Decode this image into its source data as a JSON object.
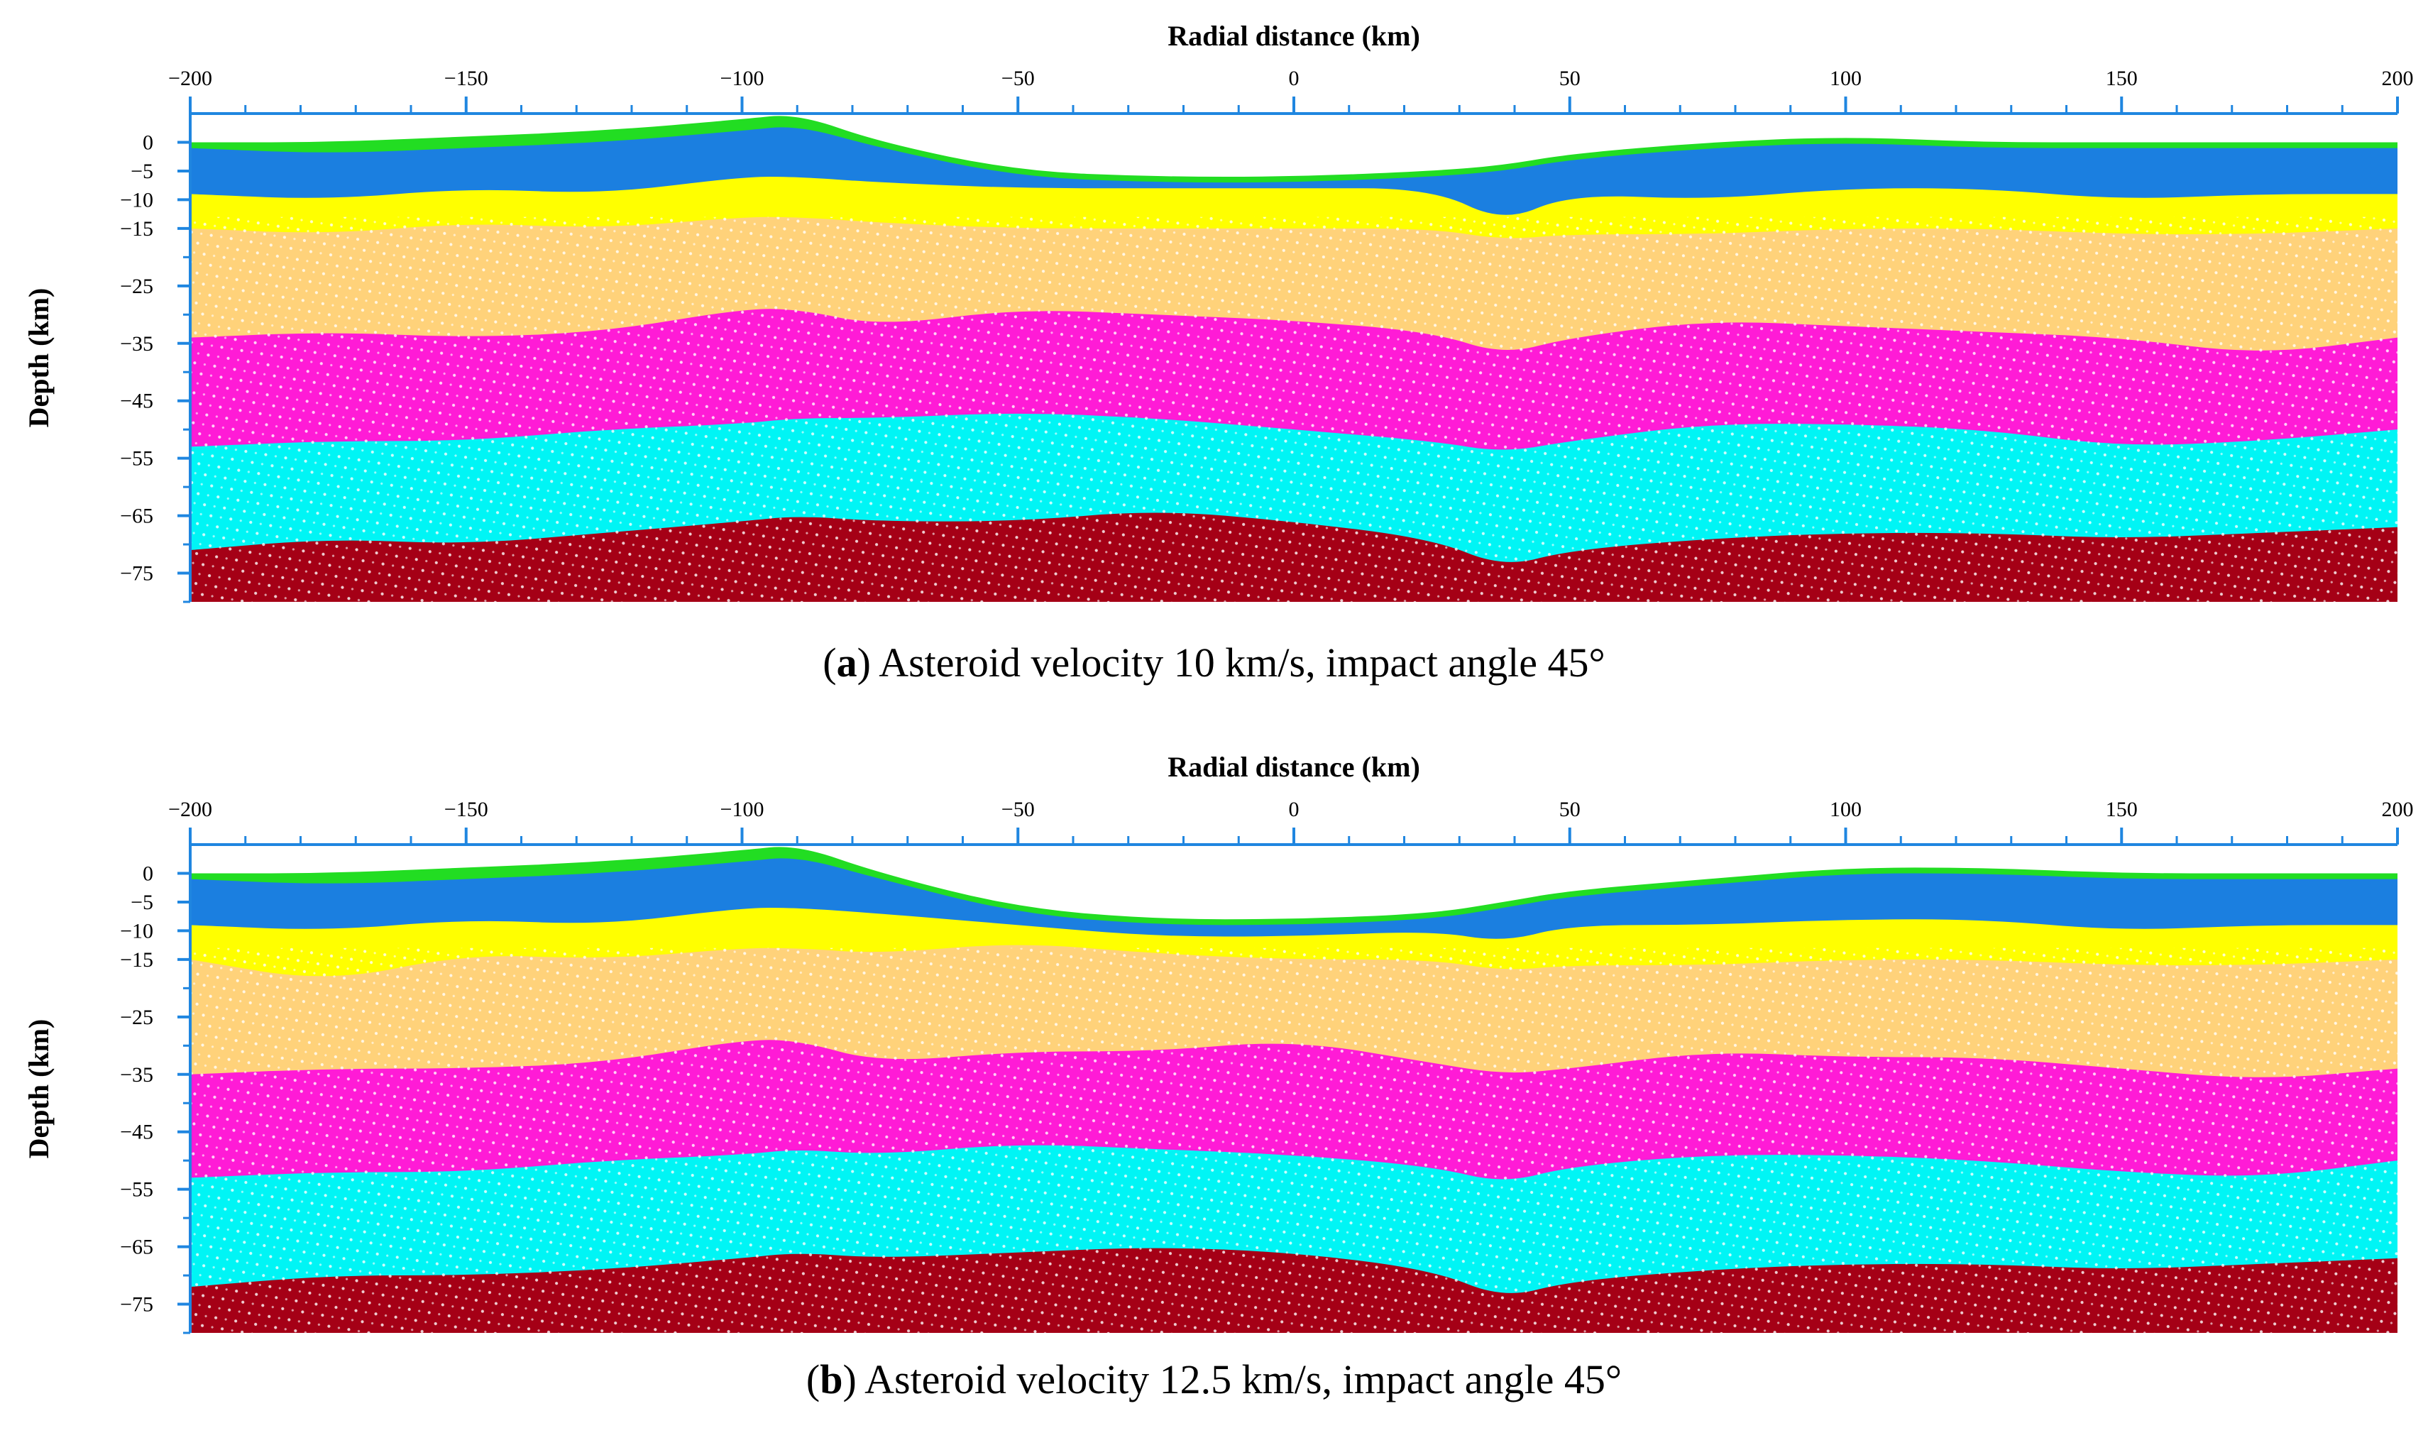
{
  "chart_data": [
    {
      "type": "area",
      "panel_letter": "a",
      "caption": "Asteroid velocity 10 km/s, impact angle 45°",
      "xlabel": "Radial distance (km)",
      "ylabel": "Depth (km)",
      "xlim": [
        -200,
        200
      ],
      "ylim": [
        -80,
        5
      ],
      "x_ticks": [
        -200,
        -150,
        -100,
        -50,
        0,
        50,
        100,
        150,
        200
      ],
      "y_ticks": [
        0,
        -5,
        -10,
        -15,
        -25,
        -35,
        -45,
        -55,
        -65,
        -75
      ],
      "x": [
        -200,
        -175,
        -150,
        -125,
        -100,
        -90,
        -75,
        -50,
        -25,
        0,
        25,
        38,
        50,
        75,
        100,
        125,
        150,
        175,
        200
      ],
      "layers": [
        {
          "name": "surface-green",
          "color": "#22dd22",
          "top": [
            0,
            0,
            1,
            2,
            4,
            5,
            0,
            -5,
            -6,
            -6,
            -5,
            -4,
            -2,
            0,
            1,
            0,
            0,
            0,
            0
          ]
        },
        {
          "name": "blue",
          "color": "#1b7fe0",
          "top": [
            -1,
            -2,
            -1,
            0,
            2,
            3,
            -1,
            -6,
            -7,
            -7,
            -6,
            -5,
            -3,
            -1,
            0,
            -1,
            -1,
            -1,
            -1
          ]
        },
        {
          "name": "yellow",
          "color": "#ffff00",
          "top": [
            -9,
            -10,
            -8,
            -9,
            -6,
            -6,
            -7,
            -8,
            -8,
            -8,
            -8,
            -14,
            -9,
            -10,
            -8,
            -8,
            -10,
            -9,
            -9
          ]
        },
        {
          "name": "tan",
          "color": "#ffd27a",
          "top": [
            -15,
            -16,
            -14,
            -15,
            -13,
            -13,
            -14,
            -15,
            -15,
            -15,
            -15,
            -17,
            -16,
            -16,
            -15,
            -15,
            -16,
            -16,
            -15
          ]
        },
        {
          "name": "magenta",
          "color": "#ff1bd6",
          "top": [
            -34,
            -33,
            -34,
            -33,
            -29,
            -29,
            -32,
            -29,
            -30,
            -31,
            -33,
            -37,
            -34,
            -31,
            -32,
            -33,
            -34,
            -37,
            -34
          ]
        },
        {
          "name": "cyan",
          "color": "#00f5f5",
          "top": [
            -53,
            -52,
            -52,
            -50,
            -49,
            -48,
            -48,
            -47,
            -48,
            -50,
            -52,
            -54,
            -52,
            -49,
            -49,
            -50,
            -53,
            -52,
            -50
          ]
        },
        {
          "name": "dark-red",
          "color": "#a50016",
          "top": [
            -71,
            -69,
            -70,
            -68,
            -66,
            -65,
            -66,
            -66,
            -64,
            -66,
            -69,
            -74,
            -71,
            -69,
            -68,
            -68,
            -69,
            -68,
            -67
          ]
        }
      ]
    },
    {
      "type": "area",
      "panel_letter": "b",
      "caption": "Asteroid velocity 12.5 km/s, impact angle 45°",
      "xlabel": "Radial distance (km)",
      "ylabel": "Depth (km)",
      "xlim": [
        -200,
        200
      ],
      "ylim": [
        -80,
        5
      ],
      "x_ticks": [
        -200,
        -150,
        -100,
        -50,
        0,
        50,
        100,
        150,
        200
      ],
      "y_ticks": [
        0,
        -5,
        -10,
        -15,
        -25,
        -35,
        -45,
        -55,
        -65,
        -75
      ],
      "x": [
        -200,
        -175,
        -150,
        -125,
        -100,
        -90,
        -75,
        -50,
        -25,
        0,
        25,
        38,
        50,
        75,
        100,
        125,
        150,
        175,
        200
      ],
      "layers": [
        {
          "name": "surface-green",
          "color": "#22dd22",
          "top": [
            0,
            0,
            1,
            2,
            4,
            5,
            0,
            -6,
            -8,
            -8,
            -7,
            -5,
            -3,
            -1,
            1,
            1,
            0,
            0,
            0
          ]
        },
        {
          "name": "blue",
          "color": "#1b7fe0",
          "top": [
            -1,
            -2,
            -1,
            0,
            2,
            3,
            -1,
            -7,
            -9,
            -9,
            -8,
            -6,
            -4,
            -2,
            0,
            0,
            -1,
            -1,
            -1
          ]
        },
        {
          "name": "yellow",
          "color": "#ffff00",
          "top": [
            -9,
            -10,
            -8,
            -9,
            -6,
            -6,
            -7,
            -9,
            -11,
            -11,
            -10,
            -12,
            -9,
            -9,
            -8,
            -8,
            -10,
            -9,
            -9
          ]
        },
        {
          "name": "tan",
          "color": "#ffd27a",
          "top": [
            -15,
            -19,
            -14,
            -15,
            -13,
            -13,
            -14,
            -12,
            -14,
            -15,
            -15,
            -17,
            -16,
            -16,
            -15,
            -15,
            -16,
            -16,
            -15
          ]
        },
        {
          "name": "magenta",
          "color": "#ff1bd6",
          "top": [
            -35,
            -34,
            -34,
            -33,
            -29,
            -29,
            -33,
            -31,
            -31,
            -29,
            -33,
            -35,
            -34,
            -31,
            -32,
            -32,
            -34,
            -36,
            -34
          ]
        },
        {
          "name": "cyan",
          "color": "#00f5f5",
          "top": [
            -53,
            -52,
            -52,
            -50,
            -49,
            -48,
            -49,
            -47,
            -48,
            -49,
            -51,
            -54,
            -51,
            -49,
            -49,
            -50,
            -52,
            -53,
            -50
          ]
        },
        {
          "name": "dark-red",
          "color": "#a50016",
          "top": [
            -72,
            -70,
            -70,
            -69,
            -67,
            -66,
            -67,
            -66,
            -65,
            -66,
            -69,
            -74,
            -71,
            -69,
            -68,
            -68,
            -69,
            -68,
            -67
          ]
        }
      ]
    }
  ]
}
